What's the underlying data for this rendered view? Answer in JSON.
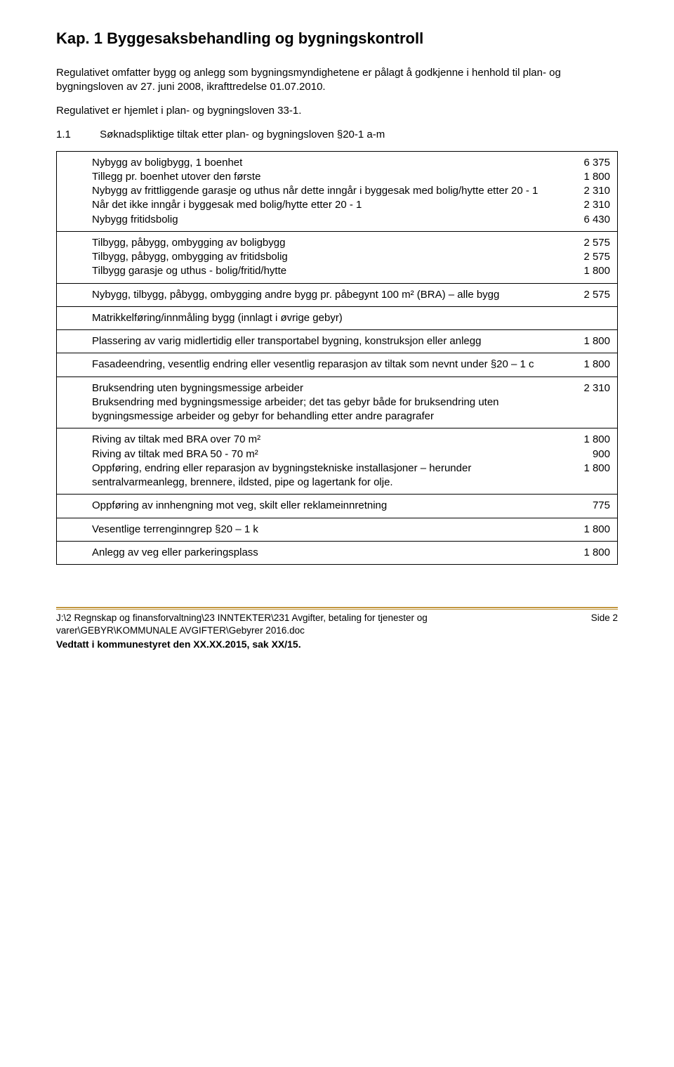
{
  "chapter_title": "Kap. 1 Byggesaksbehandling og bygningskontroll",
  "intro1": "Regulativet omfatter bygg og anlegg som bygningsmyndighetene er pålagt å godkjenne i henhold til plan- og bygningsloven av 27. juni 2008, ikrafttredelse 01.07.2010.",
  "intro2": "Regulativet er hjemlet i plan- og bygningsloven 33-1.",
  "section_num": "1.1",
  "section_title": "Søknadspliktige tiltak etter plan- og bygningsloven §20-1 a-m",
  "blocks": [
    {
      "lines": [
        {
          "label": "Nybygg av boligbygg, 1 boenhet",
          "value": "6 375"
        },
        {
          "label": "Tillegg pr. boenhet utover den første",
          "value": "1 800"
        },
        {
          "label": "Nybygg av frittliggende garasje og uthus når dette inngår i byggesak med bolig/hytte etter 20 - 1",
          "value": "2 310"
        },
        {
          "label": "Når det ikke inngår i byggesak med bolig/hytte etter 20 - 1",
          "value": "2 310"
        },
        {
          "label": "Nybygg fritidsbolig",
          "value": "6 430"
        }
      ]
    },
    {
      "lines": [
        {
          "label": "Tilbygg, påbygg, ombygging av boligbygg",
          "value": "2 575"
        },
        {
          "label": "Tilbygg, påbygg, ombygging av fritidsbolig",
          "value": "2 575"
        },
        {
          "label": "Tilbygg garasje og uthus - bolig/fritid/hytte",
          "value": "1 800"
        }
      ]
    },
    {
      "lines": [
        {
          "label": "Nybygg, tilbygg, påbygg, ombygging andre bygg pr. påbegynt 100 m² (BRA) – alle bygg",
          "value": "2 575"
        }
      ]
    },
    {
      "lines": [
        {
          "label": "Matrikkelføring/innmåling bygg (innlagt i øvrige gebyr)",
          "value": ""
        }
      ]
    },
    {
      "lines": [
        {
          "label": "Plassering av varig midlertidig eller transportabel bygning, konstruksjon eller anlegg",
          "value": "1 800"
        }
      ]
    },
    {
      "lines": [
        {
          "label": "Fasadeendring, vesentlig endring eller vesentlig reparasjon av tiltak som nevnt under §20 – 1 c",
          "value": "1 800"
        }
      ]
    },
    {
      "lines": [
        {
          "label": "Bruksendring uten bygningsmessige arbeider",
          "value": "2 310"
        },
        {
          "label": "Bruksendring med bygningsmessige arbeider; det tas gebyr både for bruksendring uten bygningsmessige arbeider og gebyr for behandling etter andre paragrafer",
          "value": ""
        }
      ]
    },
    {
      "lines": [
        {
          "label": "Riving av tiltak med BRA over 70 m²",
          "value": "1 800"
        },
        {
          "label": "Riving av tiltak med BRA  50 - 70 m²",
          "value": "900"
        },
        {
          "label": "Oppføring, endring eller reparasjon av bygningstekniske installasjoner – herunder sentralvarmeanlegg, brennere, ildsted, pipe og lagertank for olje.",
          "value": "1 800"
        }
      ]
    },
    {
      "lines": [
        {
          "label": "Oppføring av innhengning mot veg, skilt eller reklameinnretning",
          "value": "775"
        }
      ]
    },
    {
      "lines": [
        {
          "label": "Vesentlige terrenginngrep §20 – 1 k",
          "value": "1 800"
        }
      ]
    },
    {
      "lines": [
        {
          "label": "Anlegg av veg eller parkeringsplass",
          "value": "1 800"
        }
      ]
    }
  ],
  "footer_path1": "J:\\2 Regnskap og finansforvaltning\\23 INNTEKTER\\231 Avgifter, betaling for tjenester og",
  "footer_path2": "varer\\GEBYR\\KOMMUNALE AVGIFTER\\Gebyrer 2016.doc",
  "footer_page": "Side 2",
  "footer_bold": "Vedtatt i kommunestyret den XX.XX.2015, sak XX/15.",
  "colors": {
    "text": "#000000",
    "background": "#ffffff",
    "separator": "#c2973f"
  }
}
